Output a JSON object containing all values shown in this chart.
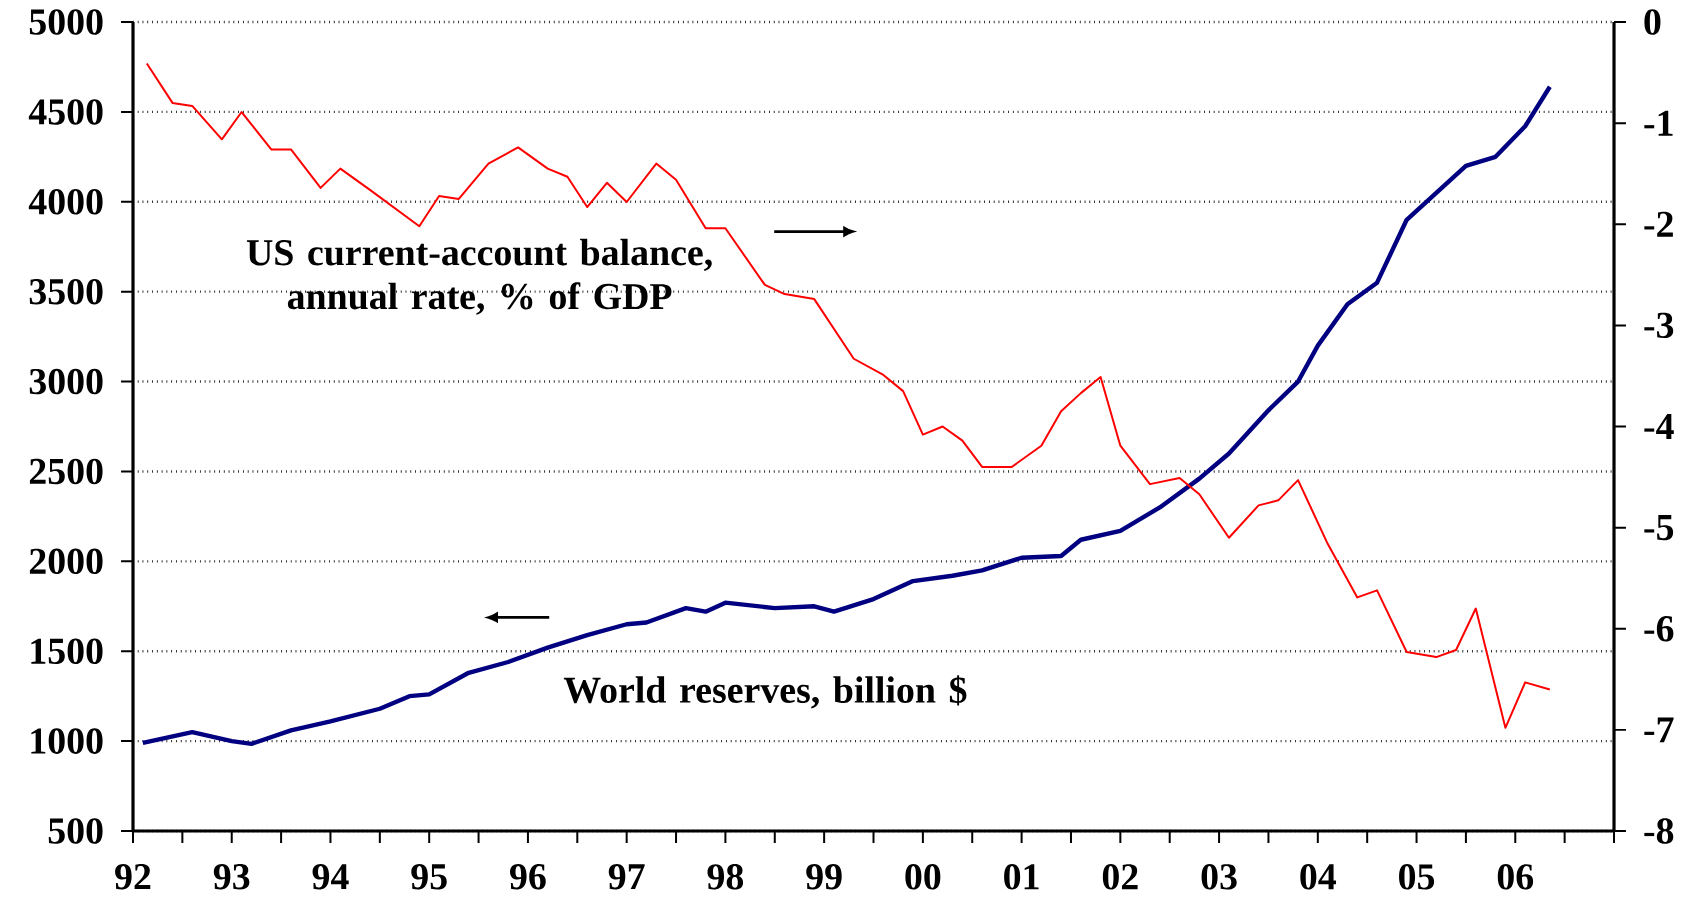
{
  "chart_data": {
    "type": "line",
    "annotations": [
      "US current-account balance, annual rate, % of GDP",
      "World reserves, billion $"
    ],
    "xlim": [
      1992,
      2007
    ],
    "xticks": [
      {
        "value": 1992,
        "label": "92"
      },
      {
        "value": 1992.5,
        "label": null
      },
      {
        "value": 1993,
        "label": "93"
      },
      {
        "value": 1993.5,
        "label": null
      },
      {
        "value": 1994,
        "label": "94"
      },
      {
        "value": 1994.5,
        "label": null
      },
      {
        "value": 1995,
        "label": "95"
      },
      {
        "value": 1995.5,
        "label": null
      },
      {
        "value": 1996,
        "label": "96"
      },
      {
        "value": 1996.5,
        "label": null
      },
      {
        "value": 1997,
        "label": "97"
      },
      {
        "value": 1997.5,
        "label": null
      },
      {
        "value": 1998,
        "label": "98"
      },
      {
        "value": 1998.5,
        "label": null
      },
      {
        "value": 1999,
        "label": "99"
      },
      {
        "value": 1999.5,
        "label": null
      },
      {
        "value": 2000,
        "label": "00"
      },
      {
        "value": 2000.5,
        "label": null
      },
      {
        "value": 2001,
        "label": "01"
      },
      {
        "value": 2001.5,
        "label": null
      },
      {
        "value": 2002,
        "label": "02"
      },
      {
        "value": 2002.5,
        "label": null
      },
      {
        "value": 2003,
        "label": "03"
      },
      {
        "value": 2003.5,
        "label": null
      },
      {
        "value": 2004,
        "label": "04"
      },
      {
        "value": 2004.5,
        "label": null
      },
      {
        "value": 2005,
        "label": "05"
      },
      {
        "value": 2005.5,
        "label": null
      },
      {
        "value": 2006,
        "label": "06"
      },
      {
        "value": 2006.5,
        "label": null
      },
      {
        "value": 2007,
        "label": null
      }
    ],
    "ylim": [
      500,
      5000
    ],
    "yticks": [
      500,
      1000,
      1500,
      2000,
      2500,
      3000,
      3500,
      4000,
      4500,
      5000
    ],
    "y2lim": [
      -8,
      0
    ],
    "y2ticks": [
      -8,
      -7,
      -6,
      -5,
      -4,
      -3,
      -2,
      -1,
      0
    ],
    "grid": "y",
    "series": [
      {
        "color": "#000080",
        "x": [
          1992.1,
          1992.6,
          1993.0,
          1993.2,
          1993.6,
          1994.0,
          1994.5,
          1994.8,
          1995.0,
          1995.4,
          1995.8,
          1996.2,
          1996.6,
          1997.0,
          1997.2,
          1997.6,
          1997.8,
          1998.0,
          1998.5,
          1998.9,
          1999.1,
          1999.5,
          1999.9,
          2000.3,
          2000.6,
          2001.0,
          2001.4,
          2001.6,
          2002.0,
          2002.4,
          2002.8,
          2003.1,
          2003.5,
          2003.8,
          2004.0,
          2004.3,
          2004.6,
          2004.9,
          2005.2,
          2005.5,
          2005.8,
          2006.1,
          2006.35
        ],
        "values": [
          990,
          1050,
          1000,
          985,
          1060,
          1110,
          1180,
          1250,
          1260,
          1380,
          1440,
          1520,
          1590,
          1650,
          1660,
          1740,
          1720,
          1770,
          1740,
          1750,
          1720,
          1790,
          1890,
          1920,
          1950,
          2020,
          2030,
          2120,
          2170,
          2300,
          2460,
          2600,
          2840,
          3000,
          3200,
          3430,
          3550,
          3900,
          4050,
          4200,
          4250,
          4420,
          4640
        ]
      },
      {
        "color": "#ff0000",
        "axis": "y2",
        "x": [
          1992.14,
          1992.4,
          1992.6,
          1992.9,
          1993.1,
          1993.4,
          1993.6,
          1993.9,
          1994.1,
          1994.4,
          1994.9,
          1995.1,
          1995.3,
          1995.6,
          1995.9,
          1996.2,
          1996.4,
          1996.6,
          1996.8,
          1997.0,
          1997.3,
          1997.5,
          1997.8,
          1998.0,
          1998.4,
          1998.6,
          1998.9,
          1999.3,
          1999.6,
          1999.8,
          2000.0,
          2000.2,
          2000.4,
          2000.6,
          2000.9,
          2001.2,
          2001.4,
          2001.6,
          2001.8,
          2002.0,
          2002.3,
          2002.6,
          2002.8,
          2003.1,
          2003.4,
          2003.6,
          2003.8,
          2004.1,
          2004.4,
          2004.6,
          2004.9,
          2005.2,
          2005.4,
          2005.6,
          2005.9,
          2006.1,
          2006.35
        ],
        "values": [
          -0.41,
          -0.8,
          -0.83,
          -1.16,
          -0.89,
          -1.26,
          -1.26,
          -1.64,
          -1.45,
          -1.66,
          -2.02,
          -1.72,
          -1.75,
          -1.4,
          -1.24,
          -1.45,
          -1.53,
          -1.83,
          -1.59,
          -1.78,
          -1.4,
          -1.56,
          -2.04,
          -2.04,
          -2.6,
          -2.69,
          -2.74,
          -3.33,
          -3.49,
          -3.65,
          -4.08,
          -4.0,
          -4.14,
          -4.4,
          -4.4,
          -4.19,
          -3.85,
          -3.67,
          -3.51,
          -4.19,
          -4.57,
          -4.51,
          -4.67,
          -5.1,
          -4.78,
          -4.73,
          -4.53,
          -5.16,
          -5.69,
          -5.62,
          -6.23,
          -6.28,
          -6.21,
          -5.8,
          -6.98,
          -6.53,
          -6.6
        ]
      }
    ]
  }
}
